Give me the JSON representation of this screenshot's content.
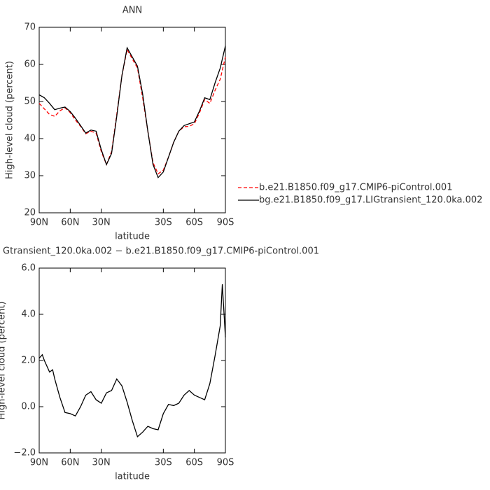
{
  "chart_data": [
    {
      "type": "line",
      "title": "ANN",
      "x_label": "latitude",
      "y_label": "High-level cloud (percent)",
      "x": [
        90,
        85,
        80,
        75,
        70,
        65,
        60,
        55,
        50,
        45,
        40,
        35,
        30,
        25,
        20,
        15,
        10,
        5,
        0,
        -5,
        -10,
        -15,
        -20,
        -25,
        -30,
        -35,
        -40,
        -45,
        -50,
        -55,
        -60,
        -65,
        -70,
        -75,
        -80,
        -85,
        -90
      ],
      "series": [
        {
          "name": "b.e21.B1850.f09_g17.CMIP6-piControl.001",
          "color": "#ff0000",
          "linestyle": "dashed",
          "values": [
            49.5,
            48,
            46.5,
            46,
            47.5,
            48.3,
            47,
            45,
            43.3,
            41.3,
            42,
            41.5,
            36.5,
            33,
            36.5,
            46.5,
            57,
            64,
            61.5,
            59,
            51,
            42,
            33.5,
            30.5,
            31.5,
            35,
            39,
            42,
            43.2,
            43.3,
            44,
            47,
            50.5,
            49.5,
            53,
            56,
            62
          ]
        },
        {
          "name": "bg.e21.B1850.f09_g17.LIGtransient_120.0ka.002",
          "color": "#000000",
          "linestyle": "solid",
          "values": [
            51.8,
            51,
            49.5,
            47.8,
            48.2,
            48.5,
            47.3,
            45.5,
            43.5,
            41.5,
            42.3,
            42,
            37,
            33,
            36,
            46,
            57,
            64.5,
            62,
            59.5,
            52,
            42,
            33,
            29.5,
            31,
            35,
            39,
            42,
            43.5,
            44,
            44.5,
            47.5,
            51,
            50.5,
            55,
            59,
            65
          ]
        }
      ],
      "legend": "right",
      "xlim": [
        90,
        -90
      ],
      "xticks": [
        {
          "value": 90,
          "label": "90N"
        },
        {
          "value": 60,
          "label": "60N"
        },
        {
          "value": 30,
          "label": "30N"
        },
        {
          "value": -30,
          "label": "30S"
        },
        {
          "value": -60,
          "label": "60S"
        },
        {
          "value": -90,
          "label": "90S"
        }
      ],
      "ylim": [
        20,
        70
      ],
      "yticks": [
        20,
        30,
        40,
        50,
        60,
        70
      ]
    },
    {
      "type": "line",
      "title": "Gtransient_120.0ka.002 − b.e21.B1850.f09_g17.CMIP6-piControl.001",
      "x_label": "latitude",
      "y_label": "High-level cloud (percent)",
      "x": [
        90,
        87,
        85,
        80,
        77,
        75,
        70,
        65,
        60,
        55,
        50,
        45,
        40,
        35,
        30,
        25,
        20,
        15,
        10,
        5,
        0,
        -5,
        -10,
        -15,
        -20,
        -25,
        -30,
        -35,
        -40,
        -45,
        -50,
        -55,
        -60,
        -65,
        -70,
        -75,
        -80,
        -85,
        -87,
        -89,
        -90
      ],
      "values": [
        2.1,
        2.25,
        2.0,
        1.5,
        1.6,
        1.2,
        0.4,
        -0.25,
        -0.3,
        -0.4,
        0.0,
        0.5,
        0.65,
        0.3,
        0.15,
        0.6,
        0.7,
        1.2,
        0.9,
        0.2,
        -0.6,
        -1.3,
        -1.1,
        -0.85,
        -0.95,
        -1.0,
        -0.3,
        0.1,
        0.05,
        0.15,
        0.5,
        0.7,
        0.5,
        0.4,
        0.3,
        1.0,
        2.2,
        3.5,
        5.3,
        3.8,
        3.0
      ],
      "color": "#000000",
      "xlim": [
        90,
        -90
      ],
      "xticks": [
        {
          "value": 90,
          "label": "90N"
        },
        {
          "value": 60,
          "label": "60N"
        },
        {
          "value": 30,
          "label": "30N"
        },
        {
          "value": -30,
          "label": "30S"
        },
        {
          "value": -60,
          "label": "60S"
        },
        {
          "value": -90,
          "label": "90S"
        }
      ],
      "ylim": [
        -2,
        6
      ],
      "yticks": [
        {
          "value": -2,
          "label": "−2.0"
        },
        {
          "value": 0,
          "label": "0.0"
        },
        {
          "value": 2,
          "label": "2.0"
        },
        {
          "value": 4,
          "label": "4.0"
        },
        {
          "value": 6,
          "label": "6.0"
        }
      ]
    }
  ]
}
